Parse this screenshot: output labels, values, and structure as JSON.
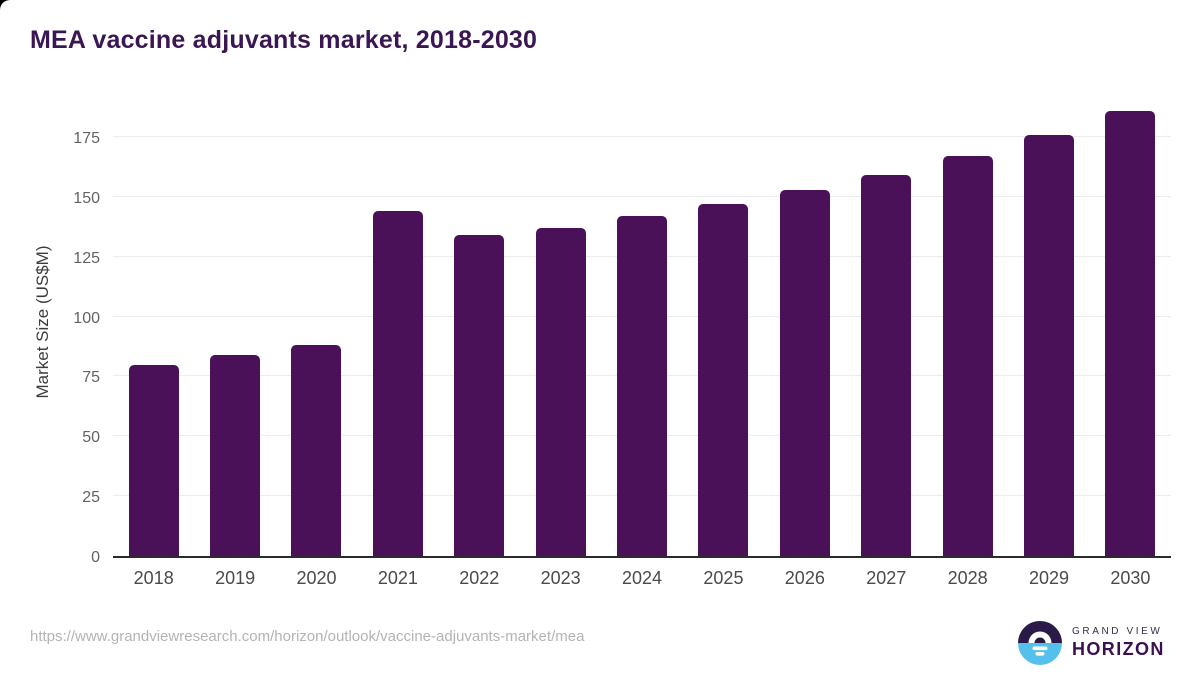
{
  "title": "MEA vaccine adjuvants market, 2018-2030",
  "chart_data": {
    "type": "bar",
    "title": "MEA vaccine adjuvants market, 2018-2030",
    "categories": [
      "2018",
      "2019",
      "2020",
      "2021",
      "2022",
      "2023",
      "2024",
      "2025",
      "2026",
      "2027",
      "2028",
      "2029",
      "2030"
    ],
    "values": [
      80,
      84,
      88,
      144,
      134,
      137,
      142,
      147,
      153,
      159,
      167,
      176,
      186
    ],
    "xlabel": "",
    "ylabel": "Market Size (US$M)",
    "ylim": [
      0,
      193
    ],
    "yticks": [
      0,
      25,
      50,
      75,
      100,
      125,
      150,
      175
    ],
    "grid": true,
    "legend": "none",
    "bar_color": "#4a1158"
  },
  "footer": {
    "source_url": "https://www.grandviewresearch.com/horizon/outlook/vaccine-adjuvants-market/mea",
    "logo": {
      "line1": "GRAND VIEW",
      "line2": "HORIZON",
      "icon": "sunrise-horizon-icon",
      "navy": "#2a1a47",
      "blue": "#56c0ed"
    }
  },
  "colors": {
    "title": "#3a1752",
    "bar": "#4a1158",
    "gridline": "#ececec",
    "axis_line": "#2b2b2b",
    "tick_label": "#636363",
    "x_label": "#4a4a4a",
    "url_text": "#b3b3b3",
    "background": "#ffffff"
  }
}
